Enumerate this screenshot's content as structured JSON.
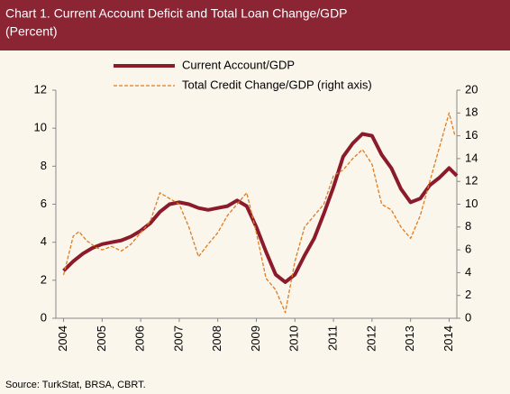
{
  "chart_data": {
    "type": "line",
    "title": "Chart 1. Current Account Deficit and Total Loan Change/GDP",
    "subtitle": "(Percent)",
    "source": "Source: TurkStat, BRSA, CBRT.",
    "xlim": [
      2003.8,
      2014.2
    ],
    "xticks": [
      2004,
      2005,
      2006,
      2007,
      2008,
      2009,
      2010,
      2011,
      2012,
      2013,
      2014
    ],
    "ylim": [
      0,
      12
    ],
    "yticks": [
      0,
      2,
      4,
      6,
      8,
      10,
      12
    ],
    "y2lim": [
      0,
      20
    ],
    "y2ticks": [
      0,
      2,
      4,
      6,
      8,
      10,
      12,
      14,
      16,
      18,
      20
    ],
    "series": [
      {
        "name": "Current Account/GDP",
        "color": "#8b1a2b",
        "axis": "y",
        "x": [
          2004.0,
          2004.25,
          2004.5,
          2004.75,
          2005.0,
          2005.25,
          2005.5,
          2005.75,
          2006.0,
          2006.25,
          2006.5,
          2006.75,
          2007.0,
          2007.25,
          2007.5,
          2007.75,
          2008.0,
          2008.25,
          2008.5,
          2008.75,
          2009.0,
          2009.25,
          2009.5,
          2009.75,
          2010.0,
          2010.25,
          2010.5,
          2010.75,
          2011.0,
          2011.25,
          2011.5,
          2011.75,
          2012.0,
          2012.25,
          2012.5,
          2012.75,
          2013.0,
          2013.25,
          2013.5,
          2013.75,
          2014.0,
          2014.2
        ],
        "values": [
          2.5,
          3.0,
          3.4,
          3.7,
          3.9,
          4.0,
          4.1,
          4.3,
          4.6,
          5.0,
          5.6,
          6.0,
          6.1,
          6.0,
          5.8,
          5.7,
          5.8,
          5.9,
          6.2,
          5.9,
          4.8,
          3.5,
          2.3,
          1.9,
          2.3,
          3.3,
          4.2,
          5.5,
          6.9,
          8.5,
          9.2,
          9.7,
          9.6,
          8.6,
          7.9,
          6.8,
          6.1,
          6.3,
          7.0,
          7.4,
          7.9,
          7.5
        ]
      },
      {
        "name": "Total Credit Change/GDP (right axis)",
        "color": "#e07b1f",
        "axis": "y2",
        "x": [
          2004.0,
          2004.25,
          2004.4,
          2004.6,
          2004.85,
          2005.0,
          2005.25,
          2005.5,
          2005.75,
          2006.0,
          2006.25,
          2006.5,
          2006.75,
          2007.0,
          2007.25,
          2007.5,
          2007.75,
          2008.0,
          2008.25,
          2008.5,
          2008.75,
          2009.0,
          2009.25,
          2009.5,
          2009.75,
          2010.0,
          2010.25,
          2010.5,
          2010.75,
          2011.0,
          2011.25,
          2011.5,
          2011.75,
          2012.0,
          2012.25,
          2012.5,
          2012.75,
          2013.0,
          2013.25,
          2013.5,
          2013.75,
          2014.0,
          2014.15
        ],
        "values": [
          3.8,
          7.2,
          7.6,
          6.8,
          6.2,
          6.0,
          6.3,
          5.9,
          6.5,
          7.5,
          8.5,
          11.0,
          10.5,
          10.0,
          8.0,
          5.4,
          6.5,
          7.5,
          9.0,
          10.0,
          11.0,
          7.5,
          3.5,
          2.5,
          0.5,
          5.0,
          8.0,
          9.0,
          10.0,
          12.5,
          13.0,
          14.0,
          14.8,
          13.5,
          10.0,
          9.5,
          8.0,
          7.0,
          9.0,
          12.0,
          15.0,
          18.0,
          16.0
        ]
      }
    ]
  }
}
